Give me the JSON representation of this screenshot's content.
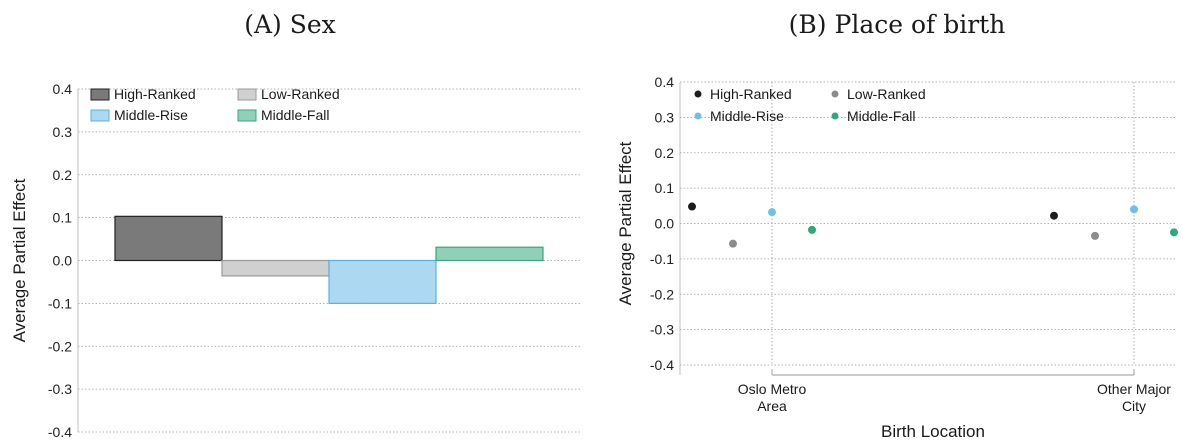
{
  "panels": {
    "a_title": "(A) Sex",
    "b_title": "(B) Place of birth"
  },
  "chart_data": [
    {
      "type": "bar",
      "title": "(A) Sex",
      "xlabel": "",
      "ylabel": "Average Partial Effect",
      "ylim": [
        -0.4,
        0.4
      ],
      "yticks": [
        0.4,
        0.3,
        0.2,
        0.1,
        0.0,
        -0.1,
        -0.2,
        -0.3,
        -0.4
      ],
      "ytick_labels": [
        "0.4",
        "0.3",
        "0.2",
        "0.1",
        "0.0",
        "-0.1",
        "-0.2",
        "-0.3",
        "-0.4"
      ],
      "grid": true,
      "legend_position": "top-left",
      "categories": [
        ""
      ],
      "series": [
        {
          "name": "High-Ranked",
          "values": [
            0.103
          ],
          "fill": "#7a7a7a",
          "stroke": "#222222"
        },
        {
          "name": "Low-Ranked",
          "values": [
            -0.036
          ],
          "fill": "#d0d0d0",
          "stroke": "#9a9a9a"
        },
        {
          "name": "Middle-Rise",
          "values": [
            -0.1
          ],
          "fill": "#acd8f2",
          "stroke": "#5ab2e0"
        },
        {
          "name": "Middle-Fall",
          "values": [
            0.031
          ],
          "fill": "#8ed1b8",
          "stroke": "#3aa57e"
        }
      ]
    },
    {
      "type": "scatter",
      "title": "(B) Place of birth",
      "xlabel": "Birth Location",
      "ylabel": "Average Partial Effect",
      "ylim": [
        -0.4,
        0.4
      ],
      "yticks": [
        0.4,
        0.3,
        0.2,
        0.1,
        0.0,
        -0.1,
        -0.2,
        -0.3,
        -0.4
      ],
      "ytick_labels": [
        "0.4",
        "0.3",
        "0.2",
        "0.1",
        "0.0",
        "-0.1",
        "-0.2",
        "-0.3",
        "-0.4"
      ],
      "grid": true,
      "legend_position": "top-left",
      "categories": [
        [
          "Oslo Metro",
          "Area"
        ],
        [
          "Other Major",
          "City"
        ]
      ],
      "series": [
        {
          "name": "High-Ranked",
          "values": [
            0.048,
            0.022
          ],
          "color": "#1c1c1c"
        },
        {
          "name": "Low-Ranked",
          "values": [
            -0.057,
            -0.035
          ],
          "color": "#8c8c8c"
        },
        {
          "name": "Middle-Rise",
          "values": [
            0.032,
            0.04
          ],
          "color": "#6ec0ea"
        },
        {
          "name": "Middle-Fall",
          "values": [
            -0.018,
            -0.025
          ],
          "color": "#2eaa7a"
        }
      ]
    }
  ]
}
